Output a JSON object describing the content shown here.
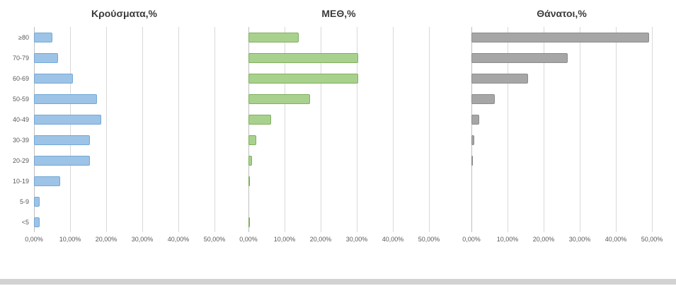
{
  "chart_data": [
    {
      "type": "bar",
      "orientation": "horizontal",
      "title": "Κρούσματα,%",
      "categories": [
        "≥80",
        "70-79",
        "60-69",
        "50-59",
        "40-49",
        "30-39",
        "20-29",
        "10-19",
        "5-9",
        "<5"
      ],
      "values": [
        5.0,
        6.7,
        10.7,
        17.5,
        18.6,
        15.4,
        15.5,
        7.3,
        1.6,
        1.6
      ],
      "color": "#9dc3e6",
      "border_color": "#74a9d8",
      "xlim": [
        0,
        50
      ],
      "xtick_values": [
        0,
        10,
        20,
        30,
        40,
        50
      ],
      "xtick_labels": [
        "0,00%",
        "10,00%",
        "20,00%",
        "30,00%",
        "40,00%",
        "50,00%"
      ],
      "show_category_labels": true,
      "grid": true,
      "legend": false
    },
    {
      "type": "bar",
      "orientation": "horizontal",
      "title": "ΜΕΘ,%",
      "categories": [
        "≥80",
        "70-79",
        "60-69",
        "50-59",
        "40-49",
        "30-39",
        "20-29",
        "10-19",
        "5-9",
        "<5"
      ],
      "values": [
        13.9,
        30.4,
        30.4,
        17.0,
        6.3,
        2.1,
        1.0,
        0.3,
        0.0,
        0.2
      ],
      "color": "#a9d18e",
      "border_color": "#7faf5c",
      "xlim": [
        0,
        50
      ],
      "xtick_values": [
        0,
        10,
        20,
        30,
        40,
        50
      ],
      "xtick_labels": [
        "0,00%",
        "10,00%",
        "20,00%",
        "30,00%",
        "40,00%",
        "50,00%"
      ],
      "show_category_labels": false,
      "grid": true,
      "legend": false
    },
    {
      "type": "bar",
      "orientation": "horizontal",
      "title": "Θάνατοι,%",
      "categories": [
        "≥80",
        "70-79",
        "60-69",
        "50-59",
        "40-49",
        "30-39",
        "20-29",
        "10-19",
        "5-9",
        "<5"
      ],
      "values": [
        49.2,
        26.7,
        15.6,
        6.5,
        2.1,
        0.7,
        0.2,
        0.0,
        0.0,
        0.0
      ],
      "color": "#a6a6a6",
      "border_color": "#8c8c8c",
      "xlim": [
        0,
        50
      ],
      "xtick_values": [
        0,
        10,
        20,
        30,
        40,
        50
      ],
      "xtick_labels": [
        "0,00%",
        "10,00%",
        "20,00%",
        "30,00%",
        "40,00%",
        "50,00%"
      ],
      "show_category_labels": true,
      "grid": true,
      "legend": false
    }
  ]
}
